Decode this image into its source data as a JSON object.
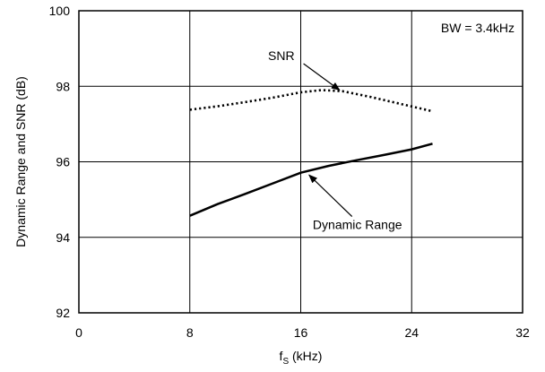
{
  "chart_data": {
    "type": "line",
    "title": "",
    "xlabel_main": "f",
    "xlabel_sub": "S",
    "xlabel_unit": " (kHz)",
    "ylabel": "Dynamic Range and SNR (dB)",
    "xlim": [
      0,
      32
    ],
    "ylim": [
      92,
      100
    ],
    "xticks": [
      0,
      8,
      16,
      24,
      32
    ],
    "yticks": [
      92,
      94,
      96,
      98,
      100
    ],
    "grid": true,
    "box_label": "BW = 3.4kHz",
    "series": [
      {
        "name": "SNR",
        "style": "dotted",
        "x": [
          8,
          10,
          12,
          14,
          16,
          17.5,
          19,
          21,
          23,
          25.5
        ],
        "y": [
          97.38,
          97.47,
          97.58,
          97.7,
          97.84,
          97.9,
          97.87,
          97.72,
          97.55,
          97.34
        ]
      },
      {
        "name": "Dynamic Range",
        "style": "solid",
        "x": [
          8,
          10,
          12,
          14,
          16,
          18,
          20,
          22,
          24,
          25.5
        ],
        "y": [
          94.57,
          94.88,
          95.15,
          95.43,
          95.71,
          95.89,
          96.04,
          96.18,
          96.33,
          96.48
        ]
      }
    ],
    "annotations": [
      {
        "text": "SNR",
        "from": [
          16.2,
          98.6
        ],
        "to": [
          18.8,
          97.9
        ]
      },
      {
        "text": "Dynamic Range",
        "from": [
          19.7,
          94.55
        ],
        "to": [
          16.6,
          95.65
        ]
      }
    ]
  }
}
